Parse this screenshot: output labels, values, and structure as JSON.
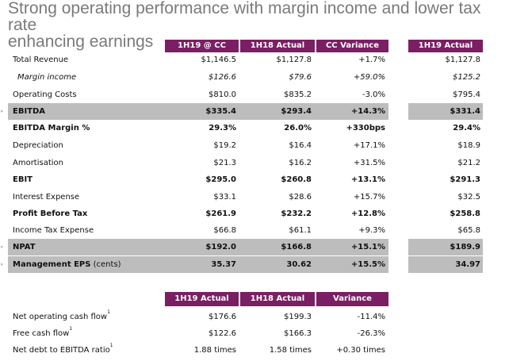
{
  "title_line1": "Strong operating performance with margin income and lower tax rate",
  "title_line2": "enhancing earnings",
  "main_headers": [
    "1H19 @ CC",
    "1H18 Actual",
    "CC Variance"
  ],
  "side_header": "1H19 Actual",
  "rows": [
    {
      "label": "Total Revenue",
      "v1": "$1,146.5",
      "v2": "$1,127.8",
      "v3": "+1.7%",
      "v4": "$1,127.8"
    },
    {
      "label": "Margin income",
      "v1": "$126.6",
      "v2": "$79.6",
      "v3": "+59.0%",
      "v4": "$125.2"
    },
    {
      "label": "Operating Costs",
      "v1": "$810.0",
      "v2": "$835.2",
      "v3": "-3.0%",
      "v4": "$795.4"
    },
    {
      "label": "EBITDA",
      "v1": "$335.4",
      "v2": "$293.4",
      "v3": "+14.3%",
      "v4": "$331.4"
    },
    {
      "label": "EBITDA Margin %",
      "v1": "29.3%",
      "v2": "26.0%",
      "v3": "+330bps",
      "v4": "29.4%"
    },
    {
      "label": "Depreciation",
      "v1": "$19.2",
      "v2": "$16.4",
      "v3": "+17.1%",
      "v4": "$18.9"
    },
    {
      "label": "Amortisation",
      "v1": "$21.3",
      "v2": "$16.2",
      "v3": "+31.5%",
      "v4": "$21.2"
    },
    {
      "label": "EBIT",
      "v1": "$295.0",
      "v2": "$260.8",
      "v3": "+13.1%",
      "v4": "$291.3"
    },
    {
      "label": "Interest Expense",
      "v1": "$33.1",
      "v2": "$28.6",
      "v3": "+15.7%",
      "v4": "$32.5"
    },
    {
      "label": "Profit Before Tax",
      "v1": "$261.9",
      "v2": "$232.2",
      "v3": "+12.8%",
      "v4": "$258.8"
    },
    {
      "label": "Income Tax Expense",
      "v1": "$66.8",
      "v2": "$61.1",
      "v3": "+9.3%",
      "v4": "$65.8"
    },
    {
      "label": "NPAT",
      "v1": "$192.0",
      "v2": "$166.8",
      "v3": "+15.1%",
      "v4": "$189.9"
    },
    {
      "label": "Management EPS",
      "label_suffix": " (cents)",
      "v1": "35.37",
      "v2": "30.62",
      "v3": "+15.5%",
      "v4": "34.97"
    }
  ],
  "cash_headers": [
    "1H19 Actual",
    "1H18 Actual",
    "Variance"
  ],
  "cash_rows": [
    {
      "label": "Net operating cash flow",
      "sup": "1",
      "v1": "$176.6",
      "v2": "$199.3",
      "v3": "-11.4%"
    },
    {
      "label": "Free cash flow",
      "sup": "1",
      "v1": "$122.6",
      "v2": "$166.3",
      "v3": "-26.3%"
    },
    {
      "label": "Net debt to EBITDA ratio",
      "sup": "1",
      "v1": "1.88 times",
      "v2": "1.58 times",
      "v3": "+0.30 times"
    }
  ]
}
